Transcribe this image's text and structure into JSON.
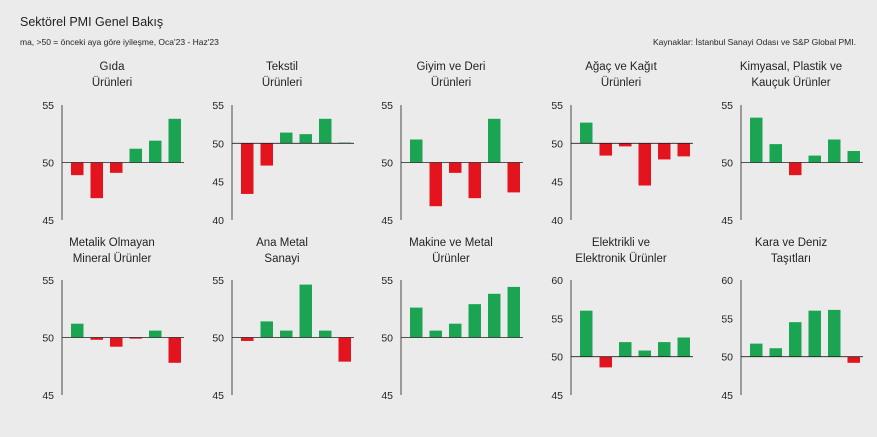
{
  "header": {
    "title": "Sektörel PMI Genel Bakış",
    "subtitle": "ma, >50 = önceki aya göre iyileşme, Oca'23 - Haz'23",
    "source": "Kaynaklar: İstanbul Sanayi Odası ve S&P Global PMI."
  },
  "colors": {
    "positive": "#1ba553",
    "negative": "#e3141d",
    "axis": "#231f20"
  },
  "chart_data": [
    {
      "type": "bar",
      "title": [
        "Gıda",
        "Ürünleri"
      ],
      "baseline": 50,
      "ylim": [
        45,
        55
      ],
      "yticks": [
        45,
        50,
        55
      ],
      "values": [
        48.9,
        46.9,
        49.1,
        51.2,
        51.9,
        53.8
      ]
    },
    {
      "type": "bar",
      "title": [
        "Tekstil",
        "Ürünleri"
      ],
      "baseline": 50,
      "ylim": [
        40,
        55
      ],
      "yticks": [
        40,
        45,
        50,
        55
      ],
      "values": [
        43.4,
        47.1,
        51.4,
        51.2,
        53.2,
        50.1
      ]
    },
    {
      "type": "bar",
      "title": [
        "Giyim ve Deri",
        "Ürünleri"
      ],
      "baseline": 50,
      "ylim": [
        45,
        55
      ],
      "yticks": [
        45,
        50,
        55
      ],
      "values": [
        52.0,
        46.2,
        49.1,
        46.9,
        53.8,
        47.4
      ]
    },
    {
      "type": "bar",
      "title": [
        "Ağaç ve Kağıt",
        "Ürünleri"
      ],
      "baseline": 50,
      "ylim": [
        40,
        55
      ],
      "yticks": [
        40,
        45,
        50,
        55
      ],
      "values": [
        52.7,
        48.4,
        49.6,
        44.5,
        47.9,
        48.3
      ]
    },
    {
      "type": "bar",
      "title": [
        "Kimyasal, Plastik ve",
        "Kauçuk Ürünler"
      ],
      "baseline": 50,
      "ylim": [
        45,
        55
      ],
      "yticks": [
        45,
        50,
        55
      ],
      "values": [
        53.9,
        51.6,
        48.9,
        50.6,
        52.0,
        51.0
      ]
    },
    {
      "type": "bar",
      "title": [
        "Metalik Olmayan",
        "Mineral Ürünler"
      ],
      "baseline": 50,
      "ylim": [
        45,
        55
      ],
      "yticks": [
        45,
        50,
        55
      ],
      "values": [
        51.2,
        49.8,
        49.2,
        49.9,
        50.6,
        47.8
      ]
    },
    {
      "type": "bar",
      "title": [
        "Ana Metal",
        "Sanayi"
      ],
      "baseline": 50,
      "ylim": [
        45,
        55
      ],
      "yticks": [
        45,
        50,
        55
      ],
      "values": [
        49.7,
        51.4,
        50.6,
        54.6,
        50.6,
        47.9
      ]
    },
    {
      "type": "bar",
      "title": [
        "Makine ve Metal",
        "Ürünler"
      ],
      "baseline": 50,
      "ylim": [
        45,
        55
      ],
      "yticks": [
        45,
        50,
        55
      ],
      "values": [
        52.6,
        50.6,
        51.2,
        52.9,
        53.8,
        54.4
      ]
    },
    {
      "type": "bar",
      "title": [
        "Elektrikli ve",
        "Elektronik Ürünler"
      ],
      "baseline": 50,
      "ylim": [
        45,
        60
      ],
      "yticks": [
        45,
        50,
        55,
        60
      ],
      "values": [
        56.0,
        48.6,
        51.9,
        50.8,
        51.9,
        52.5
      ]
    },
    {
      "type": "bar",
      "title": [
        "Kara ve Deniz",
        "Taşıtları"
      ],
      "baseline": 50,
      "ylim": [
        45,
        60
      ],
      "yticks": [
        45,
        50,
        55,
        60
      ],
      "values": [
        51.7,
        51.1,
        54.5,
        56.0,
        56.1,
        49.2
      ]
    }
  ]
}
